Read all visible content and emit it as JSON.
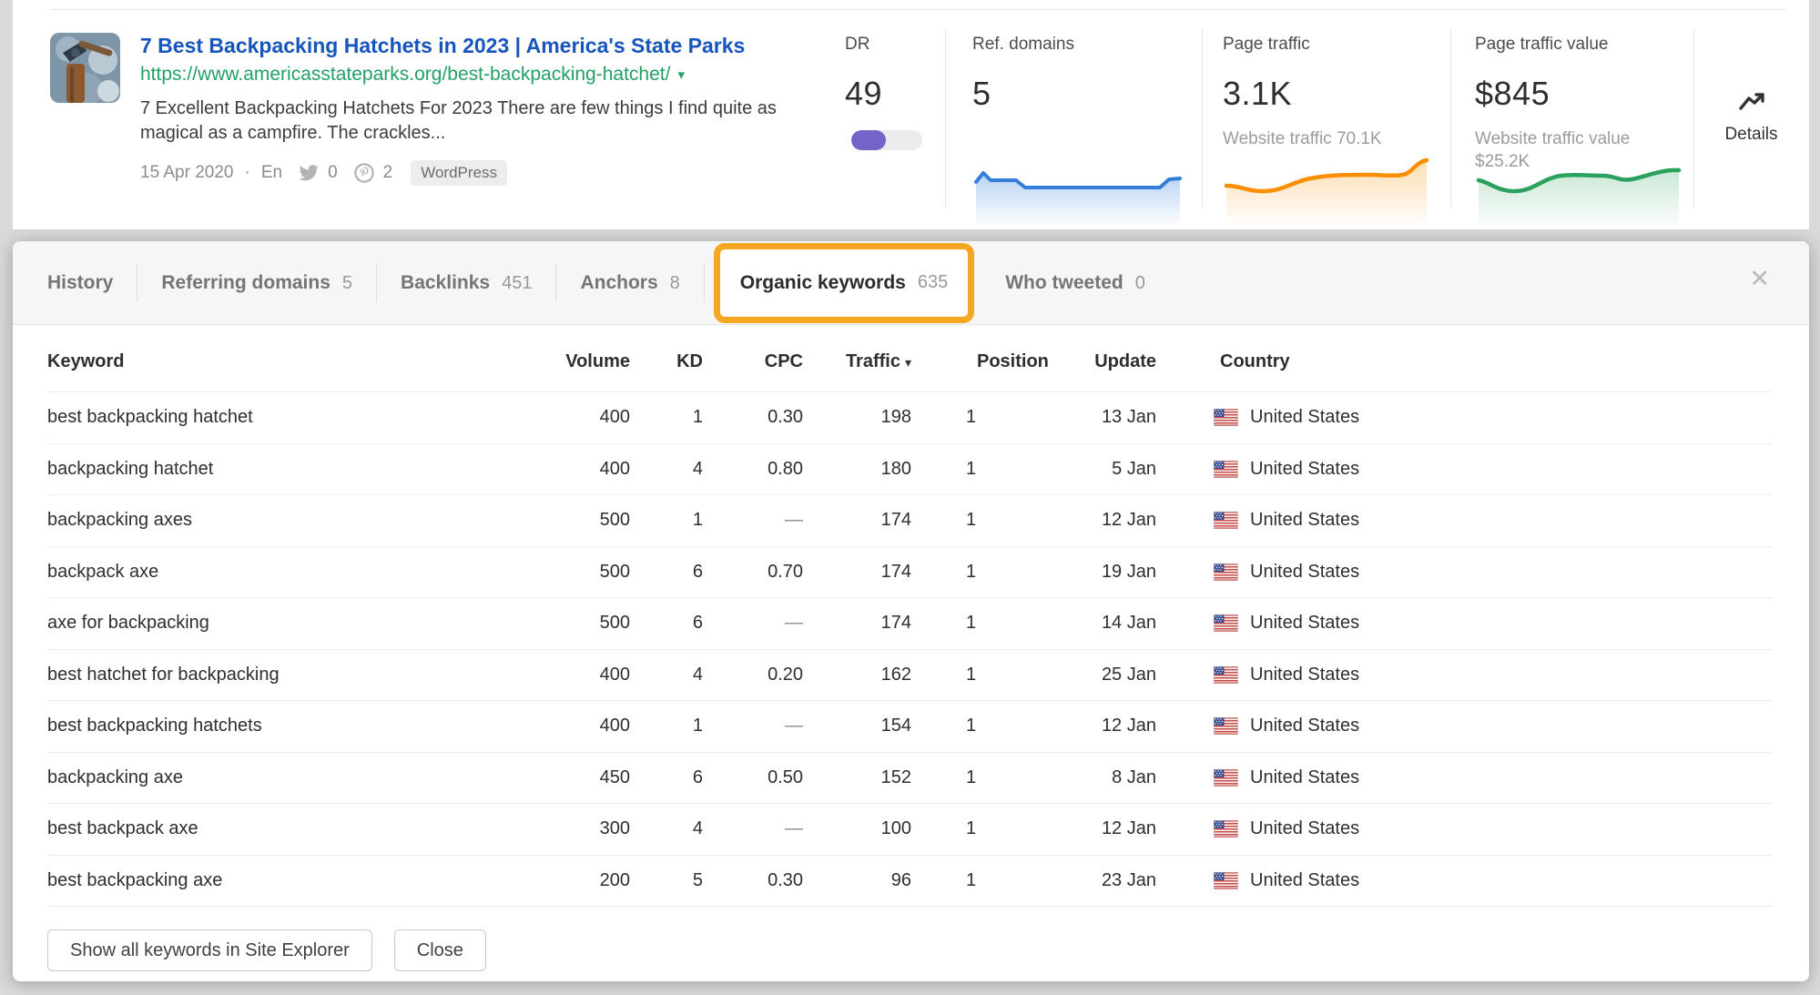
{
  "result_card": {
    "title": "7 Best Backpacking Hatchets in 2023 | America's State Parks",
    "url": "https://www.americasstateparks.org/best-backpacking-hatchet/",
    "description": "7 Excellent Backpacking Hatchets For 2023 There are few things I find quite as magical as a campfire. The crackles...",
    "date": "15 Apr 2020",
    "separator": "·",
    "language": "En",
    "twitter_count": "0",
    "pinterest_count": "2",
    "platform_badge": "WordPress",
    "metrics": {
      "dr": {
        "label": "DR",
        "value": "49",
        "bar_percent": 49,
        "bar_color": "#7364c8"
      },
      "ref_domains": {
        "label": "Ref. domains",
        "value": "5",
        "spark_color": "#337ed9"
      },
      "page_traffic": {
        "label": "Page traffic",
        "value": "3.1K",
        "sub": "Website traffic 70.1K",
        "spark_color": "#f98e00"
      },
      "page_traffic_value": {
        "label": "Page traffic value",
        "value": "$845",
        "sub_line1": "Website traffic value",
        "sub_line2": "$25.2K",
        "spark_color": "#2aa15c"
      }
    },
    "details_label": "Details"
  },
  "panel": {
    "highlight_color": "#F5A623",
    "close_glyph": "✕",
    "tabs": [
      {
        "label": "History",
        "count": ""
      },
      {
        "label": "Referring domains",
        "count": "5"
      },
      {
        "label": "Backlinks",
        "count": "451"
      },
      {
        "label": "Anchors",
        "count": "8"
      },
      {
        "label": "Organic keywords",
        "count": "635",
        "active": true,
        "highlighted": true
      },
      {
        "label": "Who tweeted",
        "count": "0"
      }
    ],
    "table": {
      "columns": [
        "Keyword",
        "Volume",
        "KD",
        "CPC",
        "Traffic",
        "Position",
        "Update",
        "Country"
      ],
      "sort_column": "Traffic",
      "sort_glyph": "▾",
      "rows": [
        {
          "keyword": "best backpacking hatchet",
          "volume": "400",
          "kd": "1",
          "cpc": "0.30",
          "traffic": "198",
          "position": "1",
          "update": "13 Jan",
          "country": "United States"
        },
        {
          "keyword": "backpacking hatchet",
          "volume": "400",
          "kd": "4",
          "cpc": "0.80",
          "traffic": "180",
          "position": "1",
          "update": "5 Jan",
          "country": "United States"
        },
        {
          "keyword": "backpacking axes",
          "volume": "500",
          "kd": "1",
          "cpc": "—",
          "traffic": "174",
          "position": "1",
          "update": "12 Jan",
          "country": "United States"
        },
        {
          "keyword": "backpack axe",
          "volume": "500",
          "kd": "6",
          "cpc": "0.70",
          "traffic": "174",
          "position": "1",
          "update": "19 Jan",
          "country": "United States"
        },
        {
          "keyword": "axe for backpacking",
          "volume": "500",
          "kd": "6",
          "cpc": "—",
          "traffic": "174",
          "position": "1",
          "update": "14 Jan",
          "country": "United States"
        },
        {
          "keyword": "best hatchet for backpacking",
          "volume": "400",
          "kd": "4",
          "cpc": "0.20",
          "traffic": "162",
          "position": "1",
          "update": "25 Jan",
          "country": "United States"
        },
        {
          "keyword": "best backpacking hatchets",
          "volume": "400",
          "kd": "1",
          "cpc": "—",
          "traffic": "154",
          "position": "1",
          "update": "12 Jan",
          "country": "United States"
        },
        {
          "keyword": "backpacking axe",
          "volume": "450",
          "kd": "6",
          "cpc": "0.50",
          "traffic": "152",
          "position": "1",
          "update": "8 Jan",
          "country": "United States"
        },
        {
          "keyword": "best backpack axe",
          "volume": "300",
          "kd": "4",
          "cpc": "—",
          "traffic": "100",
          "position": "1",
          "update": "12 Jan",
          "country": "United States"
        },
        {
          "keyword": "best backpacking axe",
          "volume": "200",
          "kd": "5",
          "cpc": "0.30",
          "traffic": "96",
          "position": "1",
          "update": "23 Jan",
          "country": "United States"
        }
      ]
    },
    "buttons": {
      "show_all": "Show all keywords in Site Explorer",
      "close": "Close"
    }
  }
}
